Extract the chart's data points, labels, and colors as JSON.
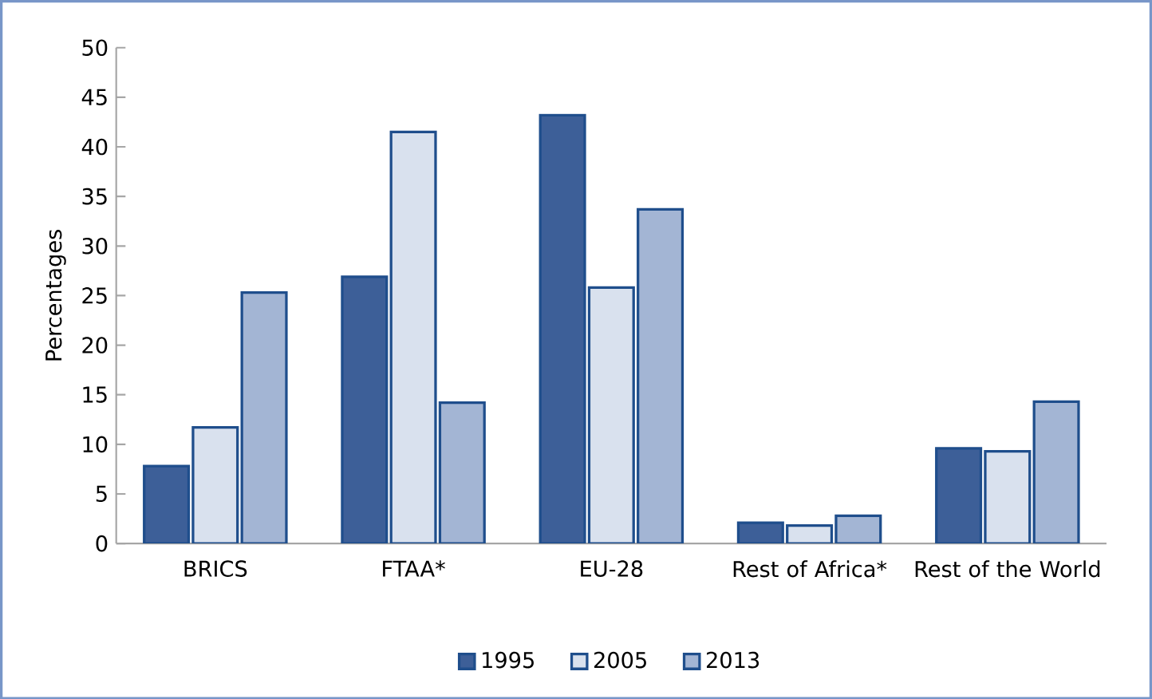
{
  "chart_data": {
    "type": "bar",
    "ylabel": "Percentages",
    "categories": [
      "BRICS",
      "FTAA*",
      "EU-28",
      "Rest of Africa*",
      "Rest of the World"
    ],
    "series": [
      {
        "name": "1995",
        "color": "#3d5f98",
        "values": [
          7.8,
          26.9,
          43.2,
          2.1,
          9.6
        ]
      },
      {
        "name": "2005",
        "color": "#d9e1ee",
        "values": [
          11.7,
          41.5,
          25.8,
          1.8,
          9.3
        ]
      },
      {
        "name": "2013",
        "color": "#a3b5d4",
        "values": [
          25.3,
          14.2,
          33.7,
          2.8,
          14.3
        ]
      }
    ],
    "ylim": [
      0,
      50
    ],
    "yticks": [
      0,
      5,
      10,
      15,
      20,
      25,
      30,
      35,
      40,
      45,
      50
    ],
    "legend": "bottom"
  }
}
